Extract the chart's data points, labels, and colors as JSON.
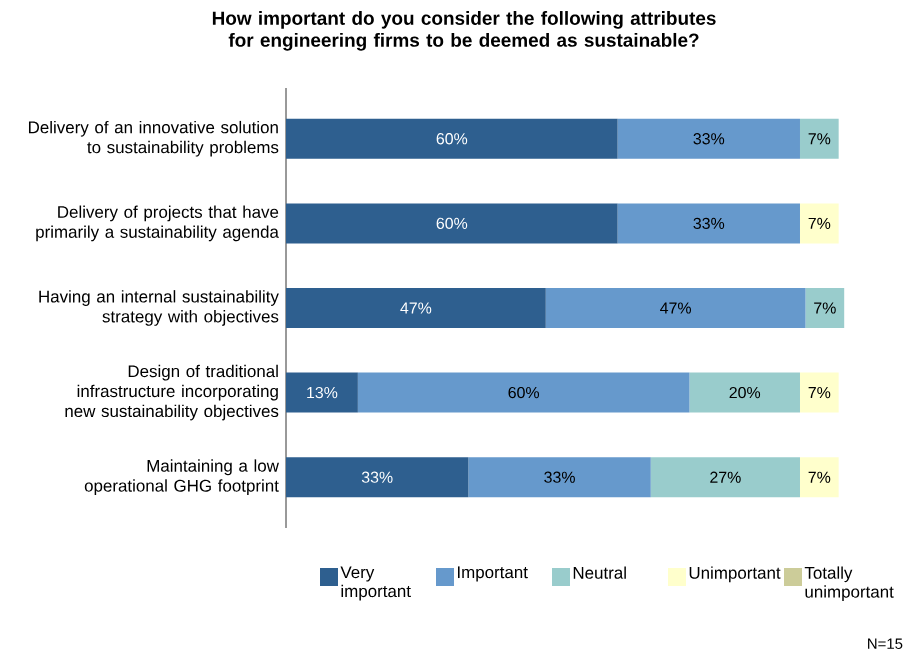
{
  "chart_data": {
    "type": "bar",
    "orientation": "horizontal",
    "stacked": true,
    "title": "How important do you consider the following attributes for engineering firms to be deemed as sustainable?",
    "categories": [
      "Delivery of an innovative solution to sustainability problems",
      "Delivery of projects that have primarily a sustainability agenda",
      "Having an internal sustainability strategy with objectives",
      "Design of traditional infrastructure incorporating new sustainability objectives",
      "Maintaining a low operational GHG footprint"
    ],
    "tick_labels": "y",
    "legend": "bottom",
    "grid": false,
    "series": [
      {
        "name": "Very important",
        "color": "#2e5f8f",
        "values": [
          60,
          60,
          47,
          13,
          33
        ],
        "value_labels": [
          "60%",
          "60%",
          "47%",
          "13%",
          "33%"
        ]
      },
      {
        "name": "Important",
        "color": "#6699cc",
        "values": [
          33,
          33,
          47,
          60,
          33
        ],
        "value_labels": [
          "33%",
          "33%",
          "47%",
          "60%",
          "33%"
        ]
      },
      {
        "name": "Neutral",
        "color": "#99cccc",
        "values": [
          7,
          0,
          7,
          20,
          27
        ],
        "value_labels": [
          "7%",
          null,
          "7%",
          "20%",
          "27%"
        ]
      },
      {
        "name": "Unimportant",
        "color": "#ffffcc",
        "values": [
          0,
          7,
          0,
          7,
          7
        ],
        "value_labels": [
          null,
          "7%",
          null,
          "7%",
          "7%"
        ]
      },
      {
        "name": "Totally unimportant",
        "color": "#cccc99",
        "values": [
          0,
          0,
          0,
          0,
          0
        ]
      }
    ],
    "annotations": [
      "N=15"
    ]
  }
}
